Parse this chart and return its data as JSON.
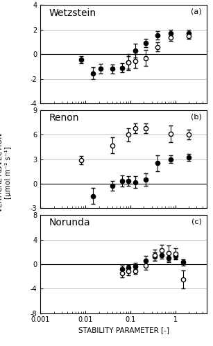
{
  "panels": [
    {
      "label": "(a)",
      "title": "Wetzstein",
      "ylim": [
        -4,
        4
      ],
      "yticks": [
        -4,
        -2,
        0,
        2,
        4
      ],
      "filled_x": [
        0.008,
        0.015,
        0.022,
        0.04,
        0.065,
        0.09,
        0.13,
        0.22,
        0.4,
        0.8,
        2.0
      ],
      "filled_y": [
        -0.45,
        -1.55,
        -1.2,
        -1.2,
        -1.1,
        -0.65,
        0.3,
        0.9,
        1.55,
        1.7,
        1.7
      ],
      "filled_ye": [
        0.28,
        0.5,
        0.4,
        0.35,
        0.35,
        0.5,
        0.55,
        0.35,
        0.35,
        0.28,
        0.28
      ],
      "open_x": [
        0.09,
        0.13,
        0.22,
        0.4,
        0.8,
        2.0
      ],
      "open_y": [
        -0.65,
        -0.55,
        -0.3,
        0.6,
        1.35,
        1.5
      ],
      "open_ye": [
        0.65,
        0.55,
        0.65,
        0.35,
        0.28,
        0.25
      ]
    },
    {
      "label": "(b)",
      "title": "Renon",
      "ylim": [
        -3,
        9
      ],
      "yticks": [
        -3,
        0,
        3,
        6,
        9
      ],
      "filled_x": [
        0.015,
        0.04,
        0.065,
        0.09,
        0.13,
        0.22,
        0.4,
        0.8,
        2.0
      ],
      "filled_y": [
        -1.5,
        -0.25,
        0.35,
        0.35,
        0.2,
        0.5,
        2.5,
        3.0,
        3.2
      ],
      "filled_ye": [
        1.0,
        0.6,
        0.7,
        0.6,
        0.7,
        0.8,
        1.0,
        0.5,
        0.4
      ],
      "open_x": [
        0.008,
        0.04,
        0.09,
        0.13,
        0.22,
        0.8,
        2.0
      ],
      "open_y": [
        2.9,
        4.7,
        6.0,
        6.8,
        6.8,
        6.1,
        6.0
      ],
      "open_ye": [
        0.5,
        1.0,
        0.8,
        0.6,
        0.6,
        1.0,
        0.6
      ]
    },
    {
      "label": "(c)",
      "title": "Norunda",
      "ylim": [
        -8,
        8
      ],
      "yticks": [
        -8,
        -4,
        0,
        4,
        8
      ],
      "filled_x": [
        0.065,
        0.09,
        0.13,
        0.22,
        0.35,
        0.5,
        0.7,
        1.0,
        1.5
      ],
      "filled_y": [
        -0.8,
        -0.6,
        -0.3,
        0.5,
        1.2,
        1.5,
        1.0,
        1.4,
        0.3
      ],
      "filled_ye": [
        0.6,
        0.5,
        0.5,
        0.8,
        0.7,
        0.6,
        0.7,
        0.5,
        0.5
      ],
      "open_x": [
        0.065,
        0.09,
        0.13,
        0.22,
        0.35,
        0.5,
        0.7,
        1.0,
        1.5
      ],
      "open_y": [
        -1.5,
        -1.2,
        -1.1,
        -0.2,
        1.5,
        2.2,
        1.8,
        1.7,
        -2.5
      ],
      "open_ye": [
        0.7,
        0.6,
        0.5,
        0.7,
        0.9,
        1.0,
        1.2,
        0.9,
        1.5
      ]
    }
  ],
  "xlim": [
    0.001,
    5
  ],
  "xticks": [
    0.001,
    0.01,
    0.1,
    1
  ],
  "xticklabels": [
    "0.001",
    "0.01",
    "0.1",
    "1"
  ],
  "xlabel": "STABILITY PARAMETER [-]",
  "ylabel": "VERTICAL ADVECTION\n[μmol m⁻² s⁻¹]",
  "marker_size": 4.5,
  "capsize": 2,
  "linewidth": 0.8,
  "filled_color": "#000000",
  "open_color": "#000000",
  "bg_color": "#ffffff"
}
